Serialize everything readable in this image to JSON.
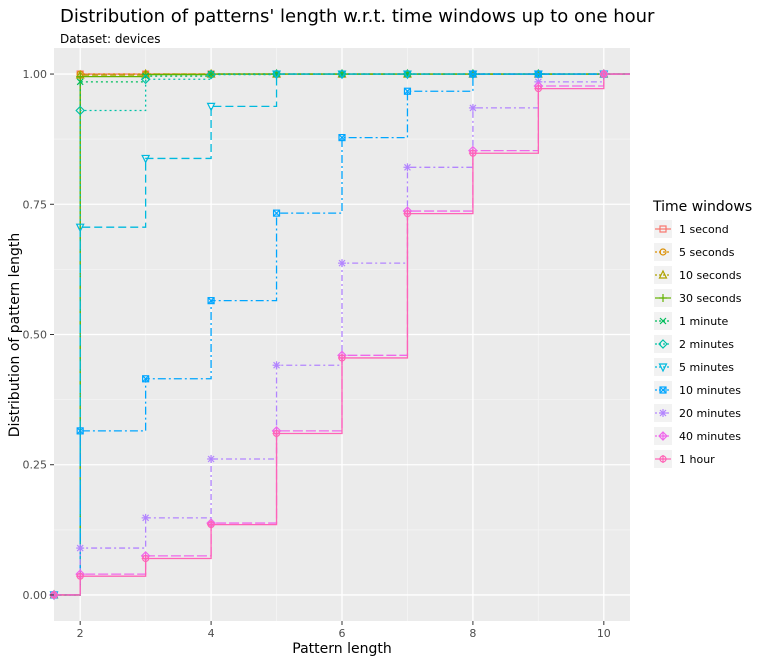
{
  "chart_data": {
    "type": "line",
    "title": "Distribution of patterns' length w.r.t. time windows up to one hour",
    "subtitle": "Dataset: devices",
    "xlabel": "Pattern length",
    "ylabel": "Distribution of pattern length",
    "xlim": [
      1.6,
      10.4
    ],
    "ylim": [
      -0.05,
      1.05
    ],
    "x_ticks": [
      2,
      4,
      6,
      8,
      10
    ],
    "x_tick_labels": [
      "2",
      "4",
      "6",
      "8",
      "10"
    ],
    "y_ticks": [
      0,
      0.25,
      0.5,
      0.75,
      1
    ],
    "y_tick_labels": [
      "0.00",
      "0.25",
      "0.50",
      "0.75",
      "1.00"
    ],
    "grid": true,
    "step": true,
    "x": [
      1.6,
      2,
      3,
      4,
      5,
      6,
      7,
      8,
      9,
      10,
      10.4
    ],
    "legend": {
      "title": "Time windows",
      "placement": "right"
    },
    "series": [
      {
        "name": "1 second",
        "color": "#F8766D",
        "dash": "",
        "marker": "square",
        "values": [
          0,
          1.0,
          1.0,
          1.0,
          1.0,
          1.0,
          1.0,
          1.0,
          1.0,
          1.0,
          1.0
        ]
      },
      {
        "name": "5 seconds",
        "color": "#DB8E00",
        "dash": "2,3",
        "marker": "circle",
        "values": [
          0,
          1.0,
          1.0,
          1.0,
          1.0,
          1.0,
          1.0,
          1.0,
          1.0,
          1.0,
          1.0
        ]
      },
      {
        "name": "10 seconds",
        "color": "#AEA200",
        "dash": "6,3",
        "marker": "triangle",
        "values": [
          0,
          0.998,
          1.0,
          1.0,
          1.0,
          1.0,
          1.0,
          1.0,
          1.0,
          1.0,
          1.0
        ]
      },
      {
        "name": "30 seconds",
        "color": "#64B200",
        "dash": "",
        "marker": "plus",
        "values": [
          0,
          0.995,
          0.999,
          1.0,
          1.0,
          1.0,
          1.0,
          1.0,
          1.0,
          1.0,
          1.0
        ]
      },
      {
        "name": "1 minute",
        "color": "#00BD5C",
        "dash": "2,3",
        "marker": "cross",
        "values": [
          0,
          0.985,
          0.996,
          1.0,
          1.0,
          1.0,
          1.0,
          1.0,
          1.0,
          1.0,
          1.0
        ]
      },
      {
        "name": "2 minutes",
        "color": "#00C1A7",
        "dash": "2,3",
        "marker": "diamond",
        "values": [
          0,
          0.93,
          0.99,
          0.999,
          1.0,
          1.0,
          1.0,
          1.0,
          1.0,
          1.0,
          1.0
        ]
      },
      {
        "name": "5 minutes",
        "color": "#00BADE",
        "dash": "8,4",
        "marker": "triangle-down",
        "values": [
          0,
          0.706,
          0.838,
          0.938,
          1.0,
          1.0,
          1.0,
          1.0,
          1.0,
          1.0,
          1.0
        ]
      },
      {
        "name": "10 minutes",
        "color": "#00A6FF",
        "dash": "8,3,2,3",
        "marker": "square-x",
        "values": [
          0,
          0.315,
          0.415,
          0.565,
          0.733,
          0.878,
          0.967,
          1.0,
          1.0,
          1.0,
          1.0
        ]
      },
      {
        "name": "20 minutes",
        "color": "#B385FF",
        "dash": "6,3,2,3",
        "marker": "asterisk",
        "values": [
          0,
          0.09,
          0.148,
          0.261,
          0.441,
          0.637,
          0.821,
          0.935,
          0.985,
          1.0,
          1.0
        ]
      },
      {
        "name": "40 minutes",
        "color": "#EF67EB",
        "dash": "10,3",
        "marker": "diamond-plus",
        "values": [
          0,
          0.04,
          0.075,
          0.138,
          0.315,
          0.46,
          0.737,
          0.853,
          0.977,
          1.0,
          1.0
        ]
      },
      {
        "name": "1 hour",
        "color": "#FF63B6",
        "dash": "",
        "marker": "circle-plus",
        "values": [
          0,
          0.036,
          0.07,
          0.135,
          0.31,
          0.455,
          0.732,
          0.848,
          0.972,
          1.0,
          1.0
        ]
      }
    ]
  }
}
